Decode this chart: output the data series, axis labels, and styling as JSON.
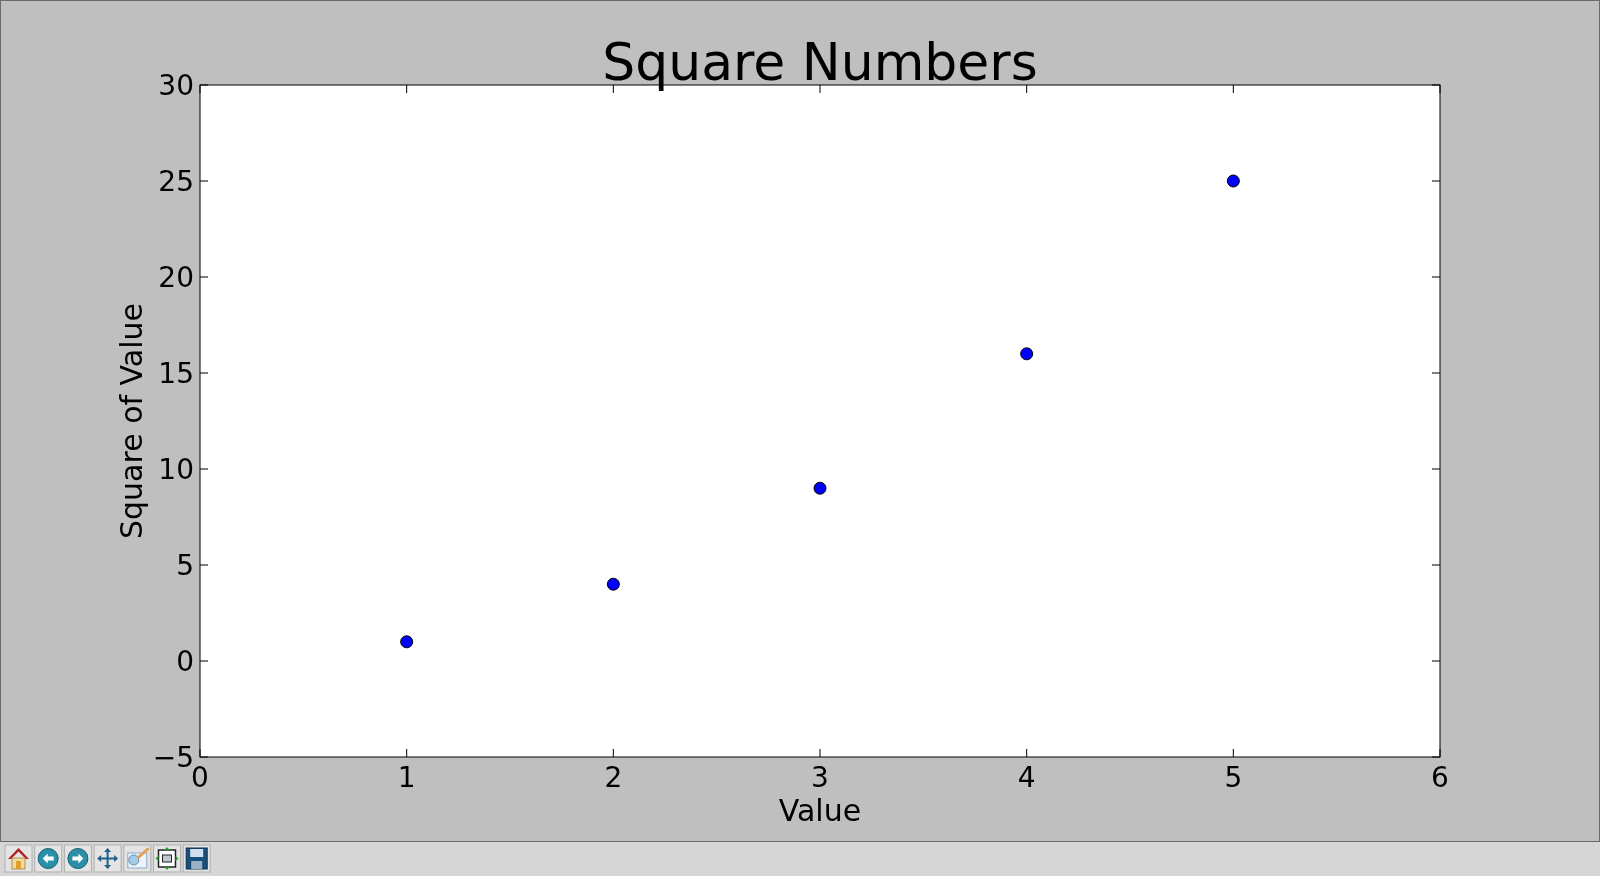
{
  "chart_data": {
    "type": "scatter",
    "title": "Square Numbers",
    "xlabel": "Value",
    "ylabel": "Square of Value",
    "x": [
      1,
      2,
      3,
      4,
      5
    ],
    "values": [
      1,
      4,
      9,
      16,
      25
    ],
    "color": "#0000ff",
    "marker": "circle",
    "xlim": [
      0,
      6
    ],
    "xticks": [
      0,
      1,
      2,
      3,
      4,
      5,
      6
    ],
    "ylim": [
      -5,
      30
    ],
    "yticks": [
      {
        "value": -5,
        "label": "−5"
      },
      0,
      5,
      10,
      15,
      20,
      25,
      30
    ]
  }
}
